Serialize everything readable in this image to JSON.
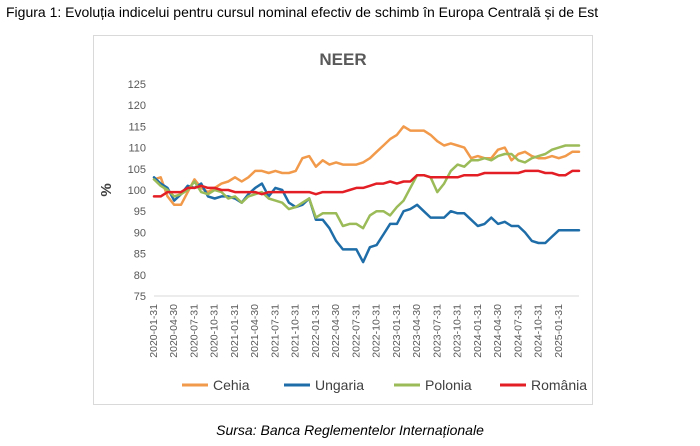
{
  "figure": {
    "caption": "Figura 1: Evoluția indicelui pentru cursul nominal efectiv de schimb în Europa Centrală și de Est",
    "source": "Sursa: Banca Reglementelor Internaționale"
  },
  "chart_data": {
    "type": "line",
    "title": "NEER",
    "xlabel": "",
    "ylabel": "%",
    "ylim": [
      75,
      125
    ],
    "yticks": [
      75,
      80,
      85,
      90,
      95,
      100,
      105,
      110,
      115,
      120,
      125
    ],
    "grid": false,
    "legend": "bottom",
    "x": [
      "2020-01-31",
      "2020-02-29",
      "2020-03-31",
      "2020-04-30",
      "2020-05-31",
      "2020-06-30",
      "2020-07-31",
      "2020-08-31",
      "2020-09-30",
      "2020-10-31",
      "2020-11-30",
      "2020-12-31",
      "2021-01-31",
      "2021-02-28",
      "2021-03-31",
      "2021-04-30",
      "2021-05-31",
      "2021-06-30",
      "2021-07-31",
      "2021-08-31",
      "2021-09-30",
      "2021-10-31",
      "2021-11-30",
      "2021-12-31",
      "2022-01-31",
      "2022-02-28",
      "2022-03-31",
      "2022-04-30",
      "2022-05-31",
      "2022-06-30",
      "2022-07-31",
      "2022-08-31",
      "2022-09-30",
      "2022-10-31",
      "2022-11-30",
      "2022-12-31",
      "2023-01-31",
      "2023-02-28",
      "2023-03-31",
      "2023-04-30",
      "2023-05-31",
      "2023-06-30",
      "2023-07-31",
      "2023-08-31",
      "2023-09-30",
      "2023-10-31",
      "2023-11-30",
      "2023-12-31",
      "2024-01-31",
      "2024-02-29",
      "2024-03-31",
      "2024-04-30",
      "2024-05-31",
      "2024-06-30",
      "2024-07-31",
      "2024-08-31",
      "2024-09-30",
      "2024-10-31",
      "2024-11-30",
      "2024-12-31",
      "2025-01-31",
      "2025-02-28",
      "2025-03-31",
      "2025-04-30"
    ],
    "xticks": [
      "2020-01-31",
      "2020-04-30",
      "2020-07-31",
      "2020-10-31",
      "2021-01-31",
      "2021-04-30",
      "2021-07-31",
      "2021-10-31",
      "2022-01-31",
      "2022-04-30",
      "2022-07-31",
      "2022-10-31",
      "2023-01-31",
      "2023-04-30",
      "2023-07-31",
      "2023-10-31",
      "2024-01-31",
      "2024-04-30",
      "2024-07-31",
      "2024-10-31",
      "2025-01-31"
    ],
    "series": [
      {
        "name": "Cehia",
        "color": "#F29A4B",
        "values": [
          102.5,
          103.0,
          98.5,
          96.5,
          96.5,
          99.5,
          102.5,
          100.5,
          99.5,
          100.5,
          101.5,
          102.0,
          103.0,
          102.0,
          103.0,
          104.5,
          104.5,
          104.0,
          104.5,
          104.0,
          104.0,
          104.5,
          107.5,
          108.0,
          105.5,
          107.0,
          106.0,
          106.5,
          106.0,
          106.0,
          106.0,
          106.5,
          107.5,
          109.0,
          110.5,
          112.0,
          113.0,
          115.0,
          114.0,
          114.0,
          114.0,
          113.0,
          111.5,
          110.5,
          111.0,
          110.5,
          110.0,
          107.5,
          108.0,
          107.5,
          107.5,
          109.5,
          110.0,
          107.0,
          108.5,
          109.0,
          108.0,
          107.5,
          107.5,
          108.0,
          107.5,
          108.0,
          109.0,
          109.0
        ]
      },
      {
        "name": "Ungaria",
        "color": "#1F6DA8",
        "values": [
          103.0,
          101.5,
          100.5,
          97.5,
          99.0,
          101.0,
          100.5,
          101.5,
          98.5,
          98.0,
          98.5,
          98.5,
          98.0,
          97.0,
          99.0,
          100.5,
          101.5,
          98.5,
          100.5,
          100.0,
          97.0,
          96.0,
          96.5,
          98.0,
          93.0,
          93.0,
          91.0,
          88.0,
          86.0,
          86.0,
          86.0,
          83.0,
          86.5,
          87.0,
          89.5,
          92.0,
          92.0,
          95.0,
          95.5,
          96.5,
          95.0,
          93.5,
          93.5,
          93.5,
          95.0,
          94.5,
          94.5,
          93.0,
          91.5,
          92.0,
          93.5,
          92.0,
          92.5,
          91.5,
          91.5,
          90.0,
          88.0,
          87.5,
          87.5,
          89.0,
          90.5,
          90.5,
          90.5,
          90.5
        ]
      },
      {
        "name": "Polonia",
        "color": "#9BBB59",
        "values": [
          102.5,
          101.0,
          100.0,
          98.5,
          99.0,
          100.0,
          102.0,
          99.5,
          99.0,
          100.0,
          99.5,
          98.0,
          98.5,
          97.0,
          98.5,
          99.0,
          99.5,
          98.0,
          97.5,
          97.0,
          95.5,
          96.0,
          97.0,
          98.0,
          93.5,
          94.5,
          94.5,
          94.5,
          91.5,
          92.0,
          92.0,
          91.0,
          94.0,
          95.0,
          95.0,
          94.0,
          96.0,
          97.5,
          100.5,
          103.5,
          103.5,
          103.0,
          99.5,
          101.5,
          104.5,
          106.0,
          105.5,
          107.0,
          107.0,
          107.5,
          107.0,
          108.0,
          108.5,
          108.5,
          107.0,
          106.5,
          107.5,
          108.0,
          108.5,
          109.5,
          110.0,
          110.5,
          110.5,
          110.5
        ]
      },
      {
        "name": "România",
        "color": "#E31E24",
        "values": [
          98.5,
          98.5,
          99.5,
          99.5,
          99.5,
          100.5,
          100.5,
          101.0,
          100.5,
          100.5,
          100.0,
          100.0,
          99.5,
          99.5,
          99.5,
          99.5,
          99.0,
          99.5,
          99.5,
          99.5,
          99.5,
          99.5,
          99.5,
          99.5,
          99.0,
          99.5,
          99.5,
          99.5,
          99.5,
          100.0,
          100.5,
          100.5,
          101.0,
          101.5,
          101.5,
          102.0,
          101.5,
          102.0,
          102.0,
          103.5,
          103.5,
          103.0,
          103.0,
          103.0,
          103.0,
          103.0,
          103.5,
          103.5,
          103.5,
          104.0,
          104.0,
          104.0,
          104.0,
          104.0,
          104.0,
          104.5,
          104.5,
          104.5,
          104.0,
          104.0,
          103.5,
          103.5,
          104.5,
          104.5
        ]
      }
    ]
  }
}
